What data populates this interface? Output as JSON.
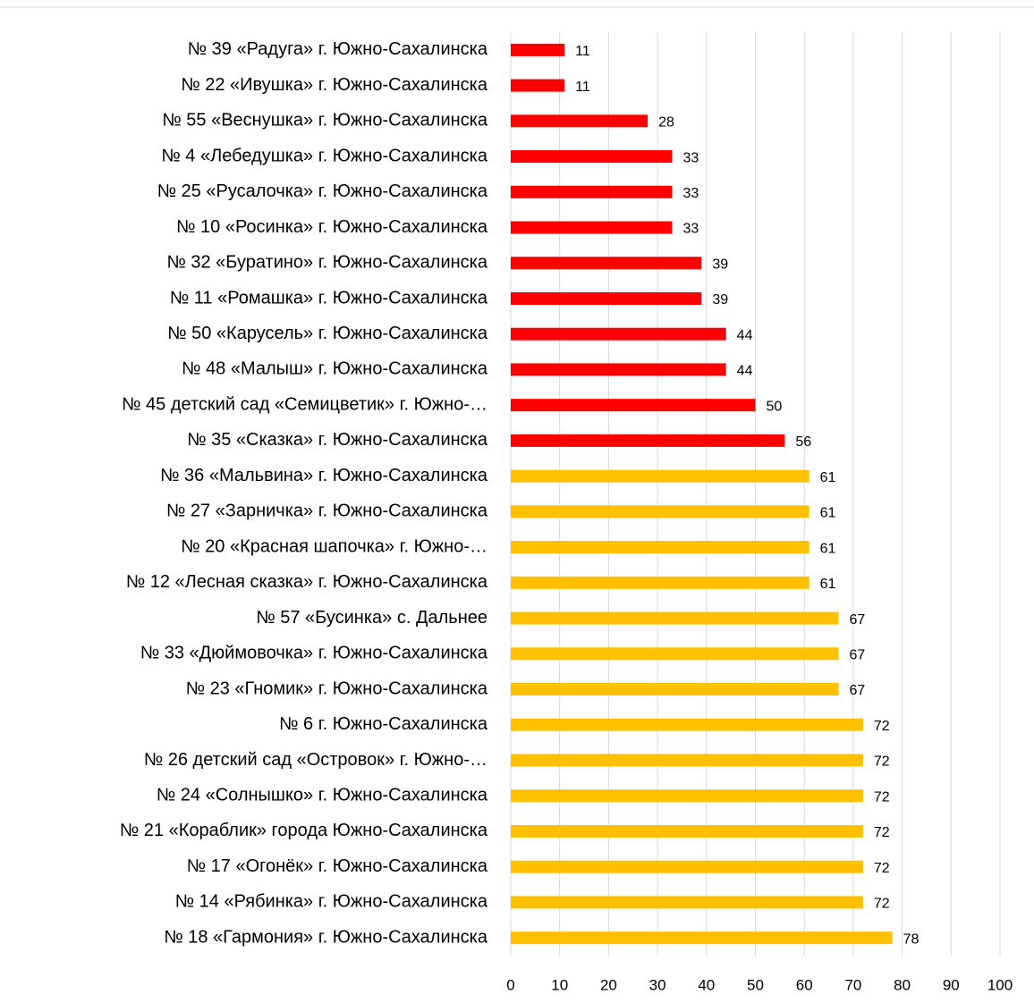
{
  "chart_data": {
    "type": "bar",
    "orientation": "horizontal",
    "categories": [
      "№ 39 «Радуга» г. Южно-Сахалинска",
      "№ 22 «Ивушка» г. Южно-Сахалинска",
      "№ 55 «Веснушка» г. Южно-Сахалинска",
      "№ 4 «Лебедушка» г. Южно-Сахалинска",
      "№ 25 «Русалочка» г. Южно-Сахалинска",
      "№ 10 «Росинка» г. Южно-Сахалинска",
      "№ 32 «Буратино» г. Южно-Сахалинска",
      "№ 11 «Ромашка» г. Южно-Сахалинска",
      "№ 50 «Карусель» г. Южно-Сахалинска",
      "№ 48 «Малыш» г. Южно-Сахалинска",
      "№ 45 детский сад «Семицветик» г. Южно-…",
      "№ 35 «Сказка» г. Южно-Сахалинска",
      "№ 36 «Мальвина» г. Южно-Сахалинска",
      "№ 27 «Зарничка» г. Южно-Сахалинска",
      "№ 20 «Красная шапочка» г. Южно-…",
      "№ 12 «Лесная сказка» г. Южно-Сахалинска",
      "№ 57 «Бусинка» с. Дальнее",
      "№ 33 «Дюймовочка» г. Южно-Сахалинска",
      "№ 23 «Гномик» г. Южно-Сахалинска",
      "№ 6 г. Южно-Сахалинска",
      "№ 26 детский сад «Островок» г. Южно-…",
      "№ 24 «Солнышко» г. Южно-Сахалинска",
      "№ 21 «Кораблик» города Южно-Сахалинска",
      "№ 17 «Огонёк» г. Южно-Сахалинска",
      "№ 14 «Рябинка» г.  Южно-Сахалинска",
      "№ 18 «Гармония» г. Южно-Сахалинска"
    ],
    "values": [
      11,
      11,
      28,
      33,
      33,
      33,
      39,
      39,
      44,
      44,
      50,
      56,
      61,
      61,
      61,
      61,
      67,
      67,
      67,
      72,
      72,
      72,
      72,
      72,
      72,
      78
    ],
    "colors": [
      "#ff0000",
      "#ff0000",
      "#ff0000",
      "#ff0000",
      "#ff0000",
      "#ff0000",
      "#ff0000",
      "#ff0000",
      "#ff0000",
      "#ff0000",
      "#ff0000",
      "#ff0000",
      "#ffc000",
      "#ffc000",
      "#ffc000",
      "#ffc000",
      "#ffc000",
      "#ffc000",
      "#ffc000",
      "#ffc000",
      "#ffc000",
      "#ffc000",
      "#ffc000",
      "#ffc000",
      "#ffc000",
      "#ffc000"
    ],
    "xlim": [
      0,
      100
    ],
    "xticks": [
      0,
      10,
      20,
      30,
      40,
      50,
      60,
      70,
      80,
      90,
      100
    ],
    "grid": true
  }
}
